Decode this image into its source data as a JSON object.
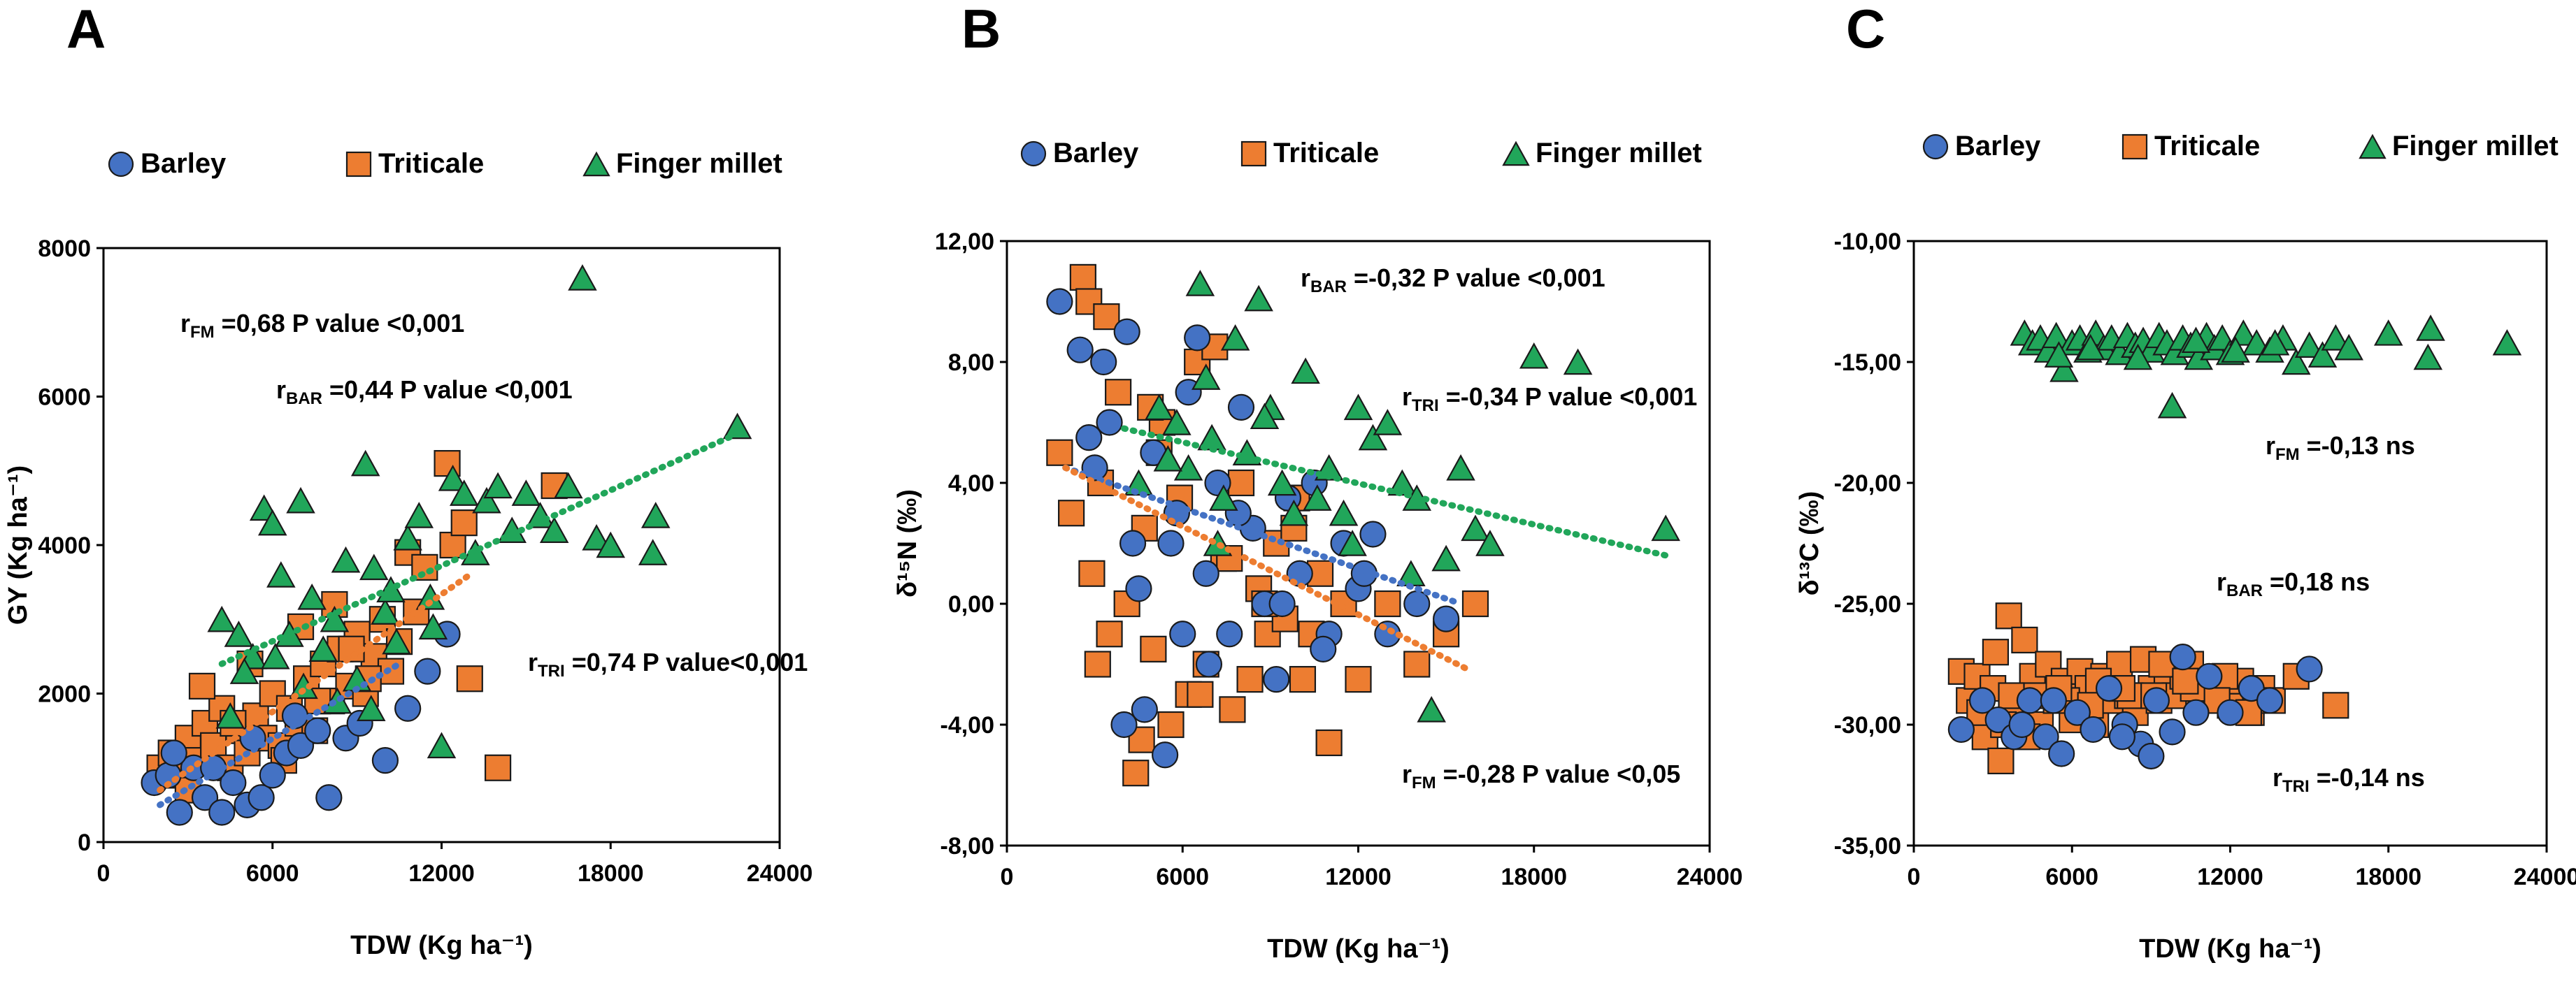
{
  "colors": {
    "barley": "#4472C4",
    "triticale": "#ED7D31",
    "finger_millet": "#21A65A",
    "outline": "#1a1a1a"
  },
  "legend": {
    "barley": "Barley",
    "triticale": "Triticale",
    "finger_millet": "Finger millet"
  },
  "chart_data": [
    {
      "panel": "A",
      "type": "scatter",
      "xlabel": "TDW (Kg ha⁻¹)",
      "ylabel": "GY (Kg ha⁻¹)",
      "xlim": [
        0,
        24000
      ],
      "ylim": [
        0,
        8000
      ],
      "xticks": [
        "0",
        "6000",
        "12000",
        "18000",
        "24000"
      ],
      "yticks": [
        "0",
        "2000",
        "4000",
        "6000",
        "8000"
      ],
      "annotations": [
        {
          "r": "r",
          "sub": "FM",
          "text": " =0,68 P value <0,001"
        },
        {
          "r": "r",
          "sub": "BAR",
          "text": " =0,44 P value <0,001"
        },
        {
          "r": "r",
          "sub": "TRI",
          "text": " =0,74 P value<0,001"
        }
      ],
      "trendlines": [
        {
          "series": "barley",
          "x": [
            2000,
            10500
          ],
          "y": [
            500,
            2400
          ]
        },
        {
          "series": "triticale",
          "x": [
            2000,
            13000
          ],
          "y": [
            700,
            3600
          ]
        },
        {
          "series": "finger_millet",
          "x": [
            4200,
            22500
          ],
          "y": [
            2400,
            5500
          ]
        }
      ],
      "series": [
        {
          "name": "barley",
          "x": [
            1800,
            2300,
            2700,
            3200,
            3600,
            4200,
            4600,
            5100,
            5600,
            6000,
            6500,
            7000,
            7600,
            8000,
            8600,
            9100,
            10000,
            10800,
            11500,
            12200,
            2500,
            3900,
            5300,
            6800
          ],
          "y": [
            800,
            900,
            400,
            1000,
            600,
            400,
            800,
            500,
            600,
            900,
            1200,
            1300,
            1500,
            600,
            1400,
            1600,
            1100,
            1800,
            2300,
            2800,
            1200,
            1000,
            1400,
            1700
          ]
        },
        {
          "name": "triticale",
          "x": [
            2000,
            2400,
            2700,
            3000,
            3300,
            3600,
            3900,
            4200,
            4500,
            4800,
            5100,
            5400,
            5700,
            6000,
            6300,
            6600,
            6900,
            7200,
            7500,
            7800,
            8100,
            8400,
            8700,
            9000,
            9300,
            9600,
            9900,
            10200,
            10500,
            10800,
            11100,
            11400,
            12200,
            12400,
            12800,
            13000,
            14000,
            16000,
            3000,
            3500,
            4600,
            5200,
            6400,
            7000,
            7600,
            8200,
            8800,
            9400
          ],
          "y": [
            1000,
            1200,
            900,
            1400,
            1100,
            1600,
            1300,
            1800,
            1000,
            1500,
            1200,
            1700,
            1400,
            2000,
            1300,
            1800,
            1600,
            2200,
            1500,
            2400,
            1900,
            2600,
            2100,
            2800,
            2000,
            2500,
            3000,
            2300,
            2700,
            3900,
            3100,
            3700,
            5100,
            4000,
            4300,
            2200,
            1000,
            4800,
            700,
            2100,
            1600,
            2400,
            1100,
            2900,
            1900,
            3200,
            2600,
            2200
          ]
        },
        {
          "name": "finger_millet",
          "x": [
            4200,
            4800,
            5300,
            5700,
            6000,
            6300,
            6600,
            7000,
            7400,
            7800,
            8200,
            8600,
            9000,
            9300,
            9600,
            10000,
            10400,
            10800,
            11200,
            11600,
            12000,
            12400,
            12800,
            13200,
            13600,
            14000,
            14500,
            15000,
            15500,
            16000,
            16500,
            17000,
            17500,
            18000,
            19500,
            19600,
            22500,
            5000,
            6100,
            7100,
            8300,
            9500,
            11700,
            4500,
            10200
          ],
          "y": [
            3000,
            2800,
            2500,
            4500,
            4300,
            3600,
            2800,
            4600,
            3300,
            2600,
            3000,
            3800,
            2200,
            5100,
            3700,
            3100,
            2700,
            4100,
            4400,
            3300,
            1300,
            4900,
            4700,
            3900,
            4600,
            4800,
            4200,
            4700,
            4400,
            4200,
            4800,
            7600,
            4100,
            4000,
            3900,
            4400,
            5600,
            2300,
            2500,
            2100,
            1900,
            1800,
            2900,
            1700,
            3400
          ]
        }
      ]
    },
    {
      "panel": "B",
      "type": "scatter",
      "xlabel": "TDW (Kg ha⁻¹)",
      "ylabel": "δ¹⁵N (‰)",
      "xlim": [
        0,
        24000
      ],
      "ylim": [
        -8,
        12
      ],
      "xticks": [
        "0",
        "6000",
        "12000",
        "18000",
        "24000"
      ],
      "yticks": [
        "-8,00",
        "-4,00",
        "0,00",
        "4,00",
        "8,00",
        "12,00"
      ],
      "annotations": [
        {
          "r": "r",
          "sub": "BAR",
          "text": " =-0,32 P value <0,001"
        },
        {
          "r": "r",
          "sub": "TRI",
          "text": " =-0,34 P value <0,001"
        },
        {
          "r": "r",
          "sub": "FM",
          "text": " =-0,28 P value <0,05"
        }
      ],
      "trendlines": [
        {
          "series": "barley",
          "x": [
            2000,
            15500
          ],
          "y": [
            4.5,
            0.0
          ]
        },
        {
          "series": "triticale",
          "x": [
            2000,
            15800
          ],
          "y": [
            4.5,
            -2.2
          ]
        },
        {
          "series": "finger_millet",
          "x": [
            4000,
            22500
          ],
          "y": [
            5.8,
            1.6
          ]
        }
      ],
      "series": [
        {
          "name": "barley",
          "x": [
            1800,
            2500,
            3000,
            3500,
            4000,
            4300,
            4700,
            5000,
            5400,
            5800,
            6200,
            6500,
            6800,
            7200,
            7600,
            8000,
            8400,
            8800,
            9200,
            9600,
            10000,
            10500,
            11000,
            11500,
            12000,
            12500,
            13000,
            14000,
            15000,
            3300,
            4500,
            5600,
            6900,
            7900,
            9400,
            10800,
            12200,
            2800,
            4100,
            6000
          ],
          "y": [
            10.0,
            8.4,
            4.5,
            6.0,
            -4.0,
            2.0,
            -3.5,
            5.0,
            -5.0,
            3.0,
            7.0,
            8.8,
            1.0,
            4.0,
            -1.0,
            6.5,
            2.5,
            0.0,
            -2.5,
            3.5,
            1.0,
            4.0,
            -1.0,
            2.0,
            0.5,
            2.3,
            -1.0,
            0.0,
            -0.5,
            8.0,
            0.5,
            2.0,
            -2.0,
            3.0,
            0.0,
            -1.5,
            1.0,
            5.5,
            9.0,
            -1.0
          ]
        },
        {
          "name": "triticale",
          "x": [
            1800,
            2200,
            2600,
            2900,
            3200,
            3500,
            3800,
            4100,
            4400,
            4700,
            5000,
            5300,
            5600,
            5900,
            6200,
            6500,
            6800,
            7100,
            7400,
            7700,
            8000,
            8300,
            8600,
            8900,
            9200,
            9500,
            9800,
            10100,
            10400,
            10700,
            11000,
            11500,
            12000,
            13000,
            14000,
            15000,
            16000,
            2800,
            3400,
            4600,
            5200,
            6600,
            7600,
            8800,
            9900,
            3100,
            4900
          ],
          "y": [
            5.0,
            3.0,
            10.8,
            1.0,
            4.0,
            -1.0,
            7.0,
            0.0,
            -5.6,
            2.5,
            -1.5,
            6.0,
            -4.0,
            3.5,
            -3.0,
            8.0,
            -2.0,
            8.5,
            1.5,
            -3.5,
            4.0,
            -2.5,
            0.5,
            -1.0,
            2.0,
            -0.5,
            2.5,
            -2.5,
            -1.0,
            1.0,
            -4.6,
            0.0,
            -2.5,
            0.0,
            -2.0,
            -1.0,
            0.0,
            10.0,
            9.5,
            -4.5,
            5.0,
            -3.0,
            1.5,
            0.0,
            3.5,
            -2.0,
            6.5
          ]
        },
        {
          "name": "finger_millet",
          "x": [
            4500,
            5200,
            5800,
            6200,
            6600,
            7000,
            7400,
            7800,
            8200,
            8600,
            9000,
            9400,
            9800,
            10200,
            10600,
            11000,
            11500,
            12000,
            12500,
            13000,
            13500,
            14000,
            14500,
            15000,
            15500,
            16000,
            16500,
            18000,
            19500,
            22500,
            5500,
            6800,
            8800,
            11800,
            13800,
            7200
          ],
          "y": [
            4.0,
            6.5,
            6.0,
            4.5,
            10.6,
            5.5,
            3.5,
            8.8,
            5.0,
            10.1,
            6.5,
            4.0,
            3.0,
            7.7,
            3.5,
            4.5,
            3.0,
            6.5,
            5.5,
            6.0,
            4.0,
            3.5,
            -3.5,
            1.5,
            4.5,
            2.5,
            2.0,
            8.2,
            8.0,
            2.5,
            4.8,
            7.5,
            6.2,
            2.0,
            1.0,
            2.0
          ]
        }
      ]
    },
    {
      "panel": "C",
      "type": "scatter",
      "xlabel": "TDW (Kg ha⁻¹)",
      "ylabel": "δ¹³C (‰)",
      "xlim": [
        0,
        24000
      ],
      "ylim": [
        -35,
        -10
      ],
      "xticks": [
        "0",
        "6000",
        "12000",
        "18000",
        "24000"
      ],
      "yticks": [
        "-35,00",
        "-30,00",
        "-25,00",
        "-20,00",
        "-15,00",
        "-10,00"
      ],
      "annotations": [
        {
          "r": "r",
          "sub": "FM",
          "text": " =-0,13 ns"
        },
        {
          "r": "r",
          "sub": "BAR",
          "text": " =0,18 ns"
        },
        {
          "r": "r",
          "sub": "TRI",
          "text": " =-0,14 ns"
        }
      ],
      "trendlines": [],
      "series": [
        {
          "name": "barley",
          "x": [
            1800,
            2600,
            3200,
            3800,
            4400,
            5000,
            5600,
            6200,
            6800,
            7400,
            8000,
            8600,
            9200,
            9800,
            10200,
            10700,
            11200,
            12000,
            12800,
            13500,
            15000,
            4100,
            5300,
            7900,
            9000
          ],
          "y": [
            -30.2,
            -29.0,
            -29.8,
            -30.5,
            -29.0,
            -30.5,
            -31.2,
            -29.5,
            -30.2,
            -28.5,
            -30.0,
            -30.8,
            -29.0,
            -30.3,
            -27.2,
            -29.5,
            -28.0,
            -29.5,
            -28.5,
            -29.0,
            -27.7,
            -30.0,
            -29.0,
            -30.5,
            -31.3
          ]
        },
        {
          "name": "triticale",
          "x": [
            1800,
            2100,
            2400,
            2700,
            3000,
            3300,
            3600,
            3900,
            4200,
            4500,
            4800,
            5100,
            5400,
            5700,
            6000,
            6300,
            6600,
            6900,
            7200,
            7500,
            7800,
            8100,
            8400,
            8700,
            9000,
            9300,
            9600,
            9900,
            10200,
            10500,
            10800,
            11100,
            11400,
            11700,
            12000,
            12400,
            12800,
            13200,
            13600,
            14500,
            16000,
            2500,
            3400,
            4600,
            5800,
            7000,
            8200,
            9400,
            10600,
            11800,
            3100,
            3700,
            4300,
            5500,
            6700,
            7900,
            9100,
            10300,
            11500,
            12700
          ],
          "y": [
            -27.8,
            -29.0,
            -28.0,
            -30.5,
            -28.5,
            -31.5,
            -25.5,
            -29.5,
            -26.5,
            -28.0,
            -30.0,
            -27.5,
            -29.0,
            -28.2,
            -29.8,
            -27.8,
            -28.5,
            -30.0,
            -28.0,
            -29.0,
            -27.5,
            -28.8,
            -29.5,
            -27.3,
            -28.5,
            -29.0,
            -27.8,
            -28.8,
            -28.0,
            -27.5,
            -29.0,
            -28.2,
            -28.8,
            -28.5,
            -29.2,
            -28.2,
            -29.5,
            -28.5,
            -29.0,
            -28.0,
            -29.2,
            -29.5,
            -30.0,
            -28.8,
            -29.0,
            -28.2,
            -28.8,
            -27.5,
            -28.5,
            -28.0,
            -27.0,
            -28.8,
            -30.5,
            -28.5,
            -29.2,
            -28.5,
            -28.8,
            -28.2,
            -29.0,
            -29.5
          ]
        },
        {
          "name": "finger_millet",
          "x": [
            4200,
            4500,
            4800,
            5100,
            5400,
            5700,
            6000,
            6300,
            6600,
            6900,
            7200,
            7500,
            7800,
            8100,
            8400,
            8700,
            9000,
            9300,
            9600,
            9900,
            10200,
            10500,
            10800,
            11100,
            11400,
            11700,
            12000,
            12500,
            13000,
            13500,
            14000,
            14500,
            15000,
            15500,
            16000,
            16500,
            18000,
            19500,
            19600,
            22500,
            5500,
            6700,
            8500,
            10700,
            12200,
            13700,
            9800
          ],
          "y": [
            -13.8,
            -14.2,
            -14.0,
            -14.5,
            -13.9,
            -15.3,
            -14.2,
            -14.0,
            -14.5,
            -13.8,
            -14.4,
            -14.0,
            -14.6,
            -13.9,
            -14.3,
            -14.1,
            -14.5,
            -13.9,
            -14.2,
            -14.6,
            -14.0,
            -14.3,
            -14.8,
            -13.9,
            -14.4,
            -14.0,
            -14.6,
            -13.8,
            -14.2,
            -14.5,
            -14.0,
            -15.0,
            -14.3,
            -14.7,
            -14.0,
            -14.4,
            -13.8,
            -14.8,
            -13.6,
            -14.2,
            -14.7,
            -14.4,
            -14.8,
            -14.1,
            -14.5,
            -14.2,
            -16.8
          ]
        }
      ]
    }
  ]
}
